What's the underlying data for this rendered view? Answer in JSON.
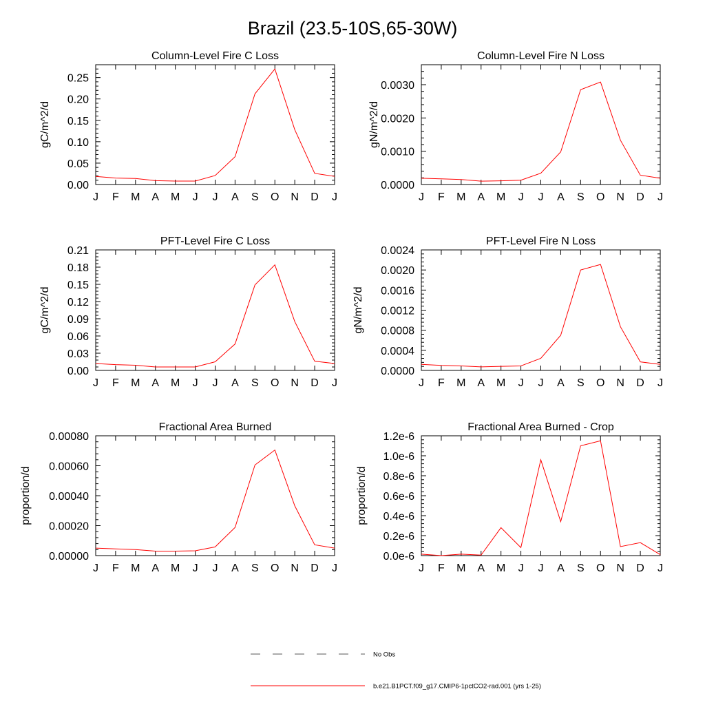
{
  "figure": {
    "title": "Brazil (23.5-10S,65-30W)"
  },
  "legend": {
    "placement": "bottom-center",
    "entries": [
      {
        "label": "No Obs",
        "style": "dashed",
        "color": "#555555"
      },
      {
        "label": "b.e21.B1PCT.f09_g17.CMIP6-1pctCO2-rad.001 (yrs 1-25)",
        "style": "solid",
        "color": "#ff0000"
      }
    ]
  },
  "series_color": "#ff0000",
  "chart_data": [
    {
      "type": "line",
      "title": "Column-Level Fire C Loss",
      "ylabel": "gC/m^2/d",
      "categories": [
        "J",
        "F",
        "M",
        "A",
        "M",
        "J",
        "J",
        "A",
        "S",
        "O",
        "N",
        "D",
        "J"
      ],
      "ylim": [
        0,
        0.28
      ],
      "yticks": [
        0.0,
        0.05,
        0.1,
        0.15,
        0.2,
        0.25
      ],
      "ytick_labels": [
        "0.00",
        "0.05",
        "0.10",
        "0.15",
        "0.20",
        "0.25"
      ],
      "series": [
        {
          "values": [
            0.019,
            0.015,
            0.014,
            0.009,
            0.008,
            0.008,
            0.021,
            0.065,
            0.212,
            0.27,
            0.128,
            0.026,
            0.019
          ]
        }
      ]
    },
    {
      "type": "line",
      "title": "Column-Level Fire N Loss",
      "ylabel": "gN/m^2/d",
      "categories": [
        "J",
        "F",
        "M",
        "A",
        "M",
        "J",
        "J",
        "A",
        "S",
        "O",
        "N",
        "D",
        "J"
      ],
      "ylim": [
        0,
        0.0036
      ],
      "yticks": [
        0.0,
        0.001,
        0.002,
        0.003
      ],
      "ytick_labels": [
        "0.0000",
        "0.0010",
        "0.0020",
        "0.0030"
      ],
      "series": [
        {
          "values": [
            0.00019,
            0.00017,
            0.00015,
            0.0001,
            0.00011,
            0.00013,
            0.00034,
            0.00098,
            0.00285,
            0.00308,
            0.00133,
            0.00028,
            0.00019
          ]
        }
      ]
    },
    {
      "type": "line",
      "title": "PFT-Level Fire C Loss",
      "ylabel": "gC/m^2/d",
      "categories": [
        "J",
        "F",
        "M",
        "A",
        "M",
        "J",
        "J",
        "A",
        "S",
        "O",
        "N",
        "D",
        "J"
      ],
      "ylim": [
        0,
        0.21
      ],
      "yticks": [
        0.0,
        0.03,
        0.06,
        0.09,
        0.12,
        0.15,
        0.18,
        0.21
      ],
      "ytick_labels": [
        "0.00",
        "0.03",
        "0.06",
        "0.09",
        "0.12",
        "0.15",
        "0.18",
        "0.21"
      ],
      "series": [
        {
          "values": [
            0.012,
            0.01,
            0.009,
            0.006,
            0.006,
            0.006,
            0.015,
            0.046,
            0.149,
            0.184,
            0.085,
            0.016,
            0.012
          ]
        }
      ]
    },
    {
      "type": "line",
      "title": "PFT-Level Fire N Loss",
      "ylabel": "gN/m^2/d",
      "categories": [
        "J",
        "F",
        "M",
        "A",
        "M",
        "J",
        "J",
        "A",
        "S",
        "O",
        "N",
        "D",
        "J"
      ],
      "ylim": [
        0,
        0.0024
      ],
      "yticks": [
        0.0,
        0.0004,
        0.0008,
        0.0012,
        0.0016,
        0.002,
        0.0024
      ],
      "ytick_labels": [
        "0.0000",
        "0.0004",
        "0.0008",
        "0.0012",
        "0.0016",
        "0.0020",
        "0.0024"
      ],
      "series": [
        {
          "values": [
            0.00012,
            0.0001,
            9e-05,
            7e-05,
            8e-05,
            9e-05,
            0.00024,
            0.0007,
            0.002,
            0.00211,
            0.00087,
            0.00017,
            0.00012
          ]
        }
      ]
    },
    {
      "type": "line",
      "title": "Fractional Area Burned",
      "ylabel": "proportion/d",
      "categories": [
        "J",
        "F",
        "M",
        "A",
        "M",
        "J",
        "J",
        "A",
        "S",
        "O",
        "N",
        "D",
        "J"
      ],
      "ylim": [
        0,
        0.0008
      ],
      "yticks": [
        0.0,
        0.0002,
        0.0004,
        0.0006,
        0.0008
      ],
      "ytick_labels": [
        "0.00000",
        "0.00020",
        "0.00040",
        "0.00060",
        "0.00080"
      ],
      "series": [
        {
          "values": [
            5e-05,
            4.5e-05,
            4e-05,
            3e-05,
            3e-05,
            3.2e-05,
            5.8e-05,
            0.000188,
            0.000605,
            0.000705,
            0.000332,
            7.2e-05,
            5e-05
          ]
        }
      ]
    },
    {
      "type": "line",
      "title": "Fractional Area Burned - Crop",
      "ylabel": "proportion/d",
      "categories": [
        "J",
        "F",
        "M",
        "A",
        "M",
        "J",
        "J",
        "A",
        "S",
        "O",
        "N",
        "D",
        "J"
      ],
      "ylim": [
        0,
        1.2e-06
      ],
      "yticks": [
        0.0,
        2e-07,
        4e-07,
        6e-07,
        8e-07,
        1e-06,
        1.2e-06
      ],
      "ytick_labels": [
        "0.0e-6",
        "0.2e-6",
        "0.4e-6",
        "0.6e-6",
        "0.8e-6",
        "1.0e-6",
        "1.2e-6"
      ],
      "series": [
        {
          "values": [
            1.5e-08,
            0.0,
            1.5e-08,
            5e-09,
            2.8e-07,
            8e-08,
            9.6e-07,
            3.4e-07,
            1.1e-06,
            1.15e-06,
            9e-08,
            1.3e-07,
            1e-08
          ]
        }
      ]
    }
  ]
}
